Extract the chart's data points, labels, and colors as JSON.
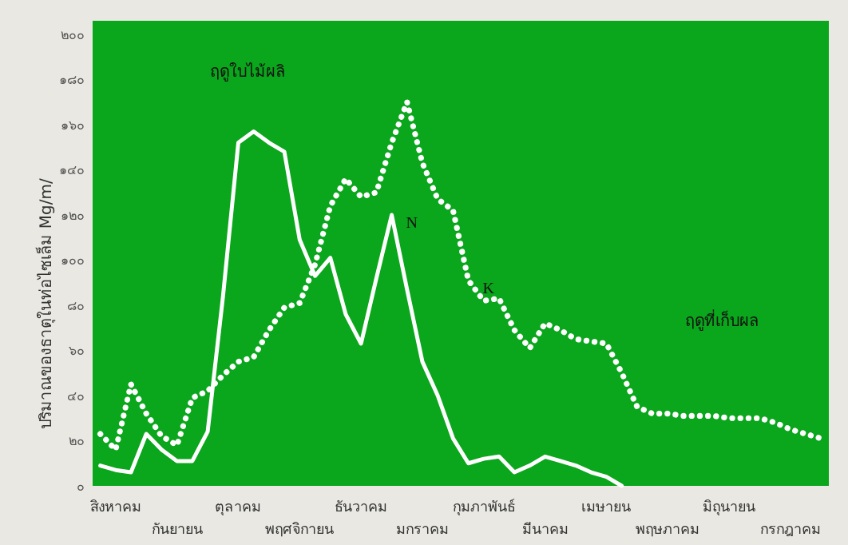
{
  "chart_data": {
    "type": "line",
    "ylabel": "ปริมาณของธาตุในท่อไซเล็ม Mg/m/",
    "annotations": [
      "ฤดูใบไม้ผลิ",
      "ฤดูที่เก็บผล"
    ],
    "categories": [
      null,
      "สิงหาคม",
      null,
      null,
      null,
      "กันยายน",
      null,
      null,
      null,
      "ตุลาคม",
      null,
      null,
      null,
      "พฤศจิกายน",
      null,
      null,
      null,
      "ธันวาคม",
      null,
      null,
      null,
      "มกราคม",
      null,
      null,
      null,
      "กุมภาพันธ์",
      null,
      null,
      null,
      "มีนาคม",
      null,
      null,
      null,
      "เมษายน",
      null,
      null,
      null,
      "พฤษภาคม",
      null,
      null,
      null,
      "มิถุนายน",
      null,
      null,
      null,
      "กรกฎาคม",
      null,
      null
    ],
    "ylim": [
      0,
      206
    ],
    "yticks": [
      {
        "value": 0,
        "label": "๐"
      },
      {
        "value": 20,
        "label": "๒๐"
      },
      {
        "value": 40,
        "label": "๔๐"
      },
      {
        "value": 60,
        "label": "๖๐"
      },
      {
        "value": 80,
        "label": "๘๐"
      },
      {
        "value": 100,
        "label": "๑๐๐"
      },
      {
        "value": 120,
        "label": "๑๒๐"
      },
      {
        "value": 140,
        "label": "๑๔๐"
      },
      {
        "value": 160,
        "label": "๑๖๐"
      },
      {
        "value": 180,
        "label": "๑๘๐"
      },
      {
        "value": 200,
        "label": "๒๐๐"
      }
    ],
    "grid": false,
    "legend": false,
    "marker": "none",
    "series": [
      {
        "name": "N",
        "color": "#ffffff",
        "line_style": "solid",
        "values": [
          9,
          7,
          6,
          23,
          16,
          11,
          11,
          24,
          84,
          152,
          157,
          152,
          148,
          109,
          93,
          101,
          76,
          63,
          92,
          120,
          87,
          55,
          40,
          21,
          10,
          12,
          13,
          6,
          9,
          13,
          11,
          9,
          6,
          4,
          0,
          null,
          null,
          null,
          null,
          null,
          null,
          null,
          null,
          null,
          null,
          null,
          null,
          null
        ]
      },
      {
        "name": "K",
        "color": "#ffffff",
        "line_style": "dotted",
        "values": [
          23,
          16,
          45,
          32,
          22,
          18,
          39,
          42,
          49,
          55,
          57,
          69,
          79,
          81,
          98,
          124,
          136,
          128,
          130,
          152,
          170,
          143,
          127,
          122,
          91,
          82,
          83,
          69,
          61,
          72,
          69,
          65,
          64,
          63,
          50,
          35,
          32,
          32,
          31,
          31,
          31,
          30,
          30,
          30,
          28,
          25,
          23,
          21
        ]
      }
    ]
  }
}
